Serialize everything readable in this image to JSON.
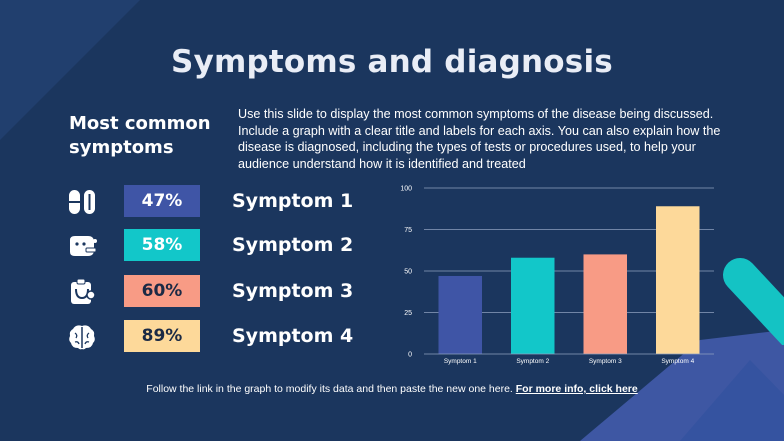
{
  "slide": {
    "title": "Symptoms and diagnosis",
    "subtitle": "Most common symptoms",
    "description": "Use this slide to display the most common symptoms of the disease being discussed. Include a graph with a clear title and labels for each axis. You can also explain how the disease is diagnosed, including the types of tests or procedures used, to help your audience understand how it is identified and treated",
    "footer_text": "Follow the link in the graph to modify its data and then paste the new one here.",
    "footer_link": "For more info, click here"
  },
  "symptoms": [
    {
      "label": "Symptom 1",
      "percent": "47%",
      "icon": "pills-icon",
      "color": "#3f55a6",
      "text_color": "#ffffff"
    },
    {
      "label": "Symptom 2",
      "percent": "58%",
      "icon": "sick-face-icon",
      "color": "#12c7c9",
      "text_color": "#ffffff"
    },
    {
      "label": "Symptom 3",
      "percent": "60%",
      "icon": "stethoscope-icon",
      "color": "#f89b85",
      "text_color": "#1b2a45"
    },
    {
      "label": "Symptom 4",
      "percent": "89%",
      "icon": "brain-icon",
      "color": "#fdd99a",
      "text_color": "#1b2a45"
    }
  ],
  "chart_data": {
    "type": "bar",
    "categories": [
      "Symptom 1",
      "Symptom 2",
      "Symptom 3",
      "Symptom 4"
    ],
    "values": [
      47,
      58,
      60,
      89
    ],
    "colors": [
      "#3f55a6",
      "#12c7c9",
      "#f89b85",
      "#fdd99a"
    ],
    "yticks": [
      "0",
      "25",
      "50",
      "75",
      "100"
    ],
    "ylim": [
      0,
      100
    ],
    "grid": true,
    "title": "",
    "xlabel": "",
    "ylabel": ""
  },
  "theme": {
    "background": "#1b365e",
    "decor_blue": "#3e57a3",
    "decor_teal": "#14c3c4"
  }
}
